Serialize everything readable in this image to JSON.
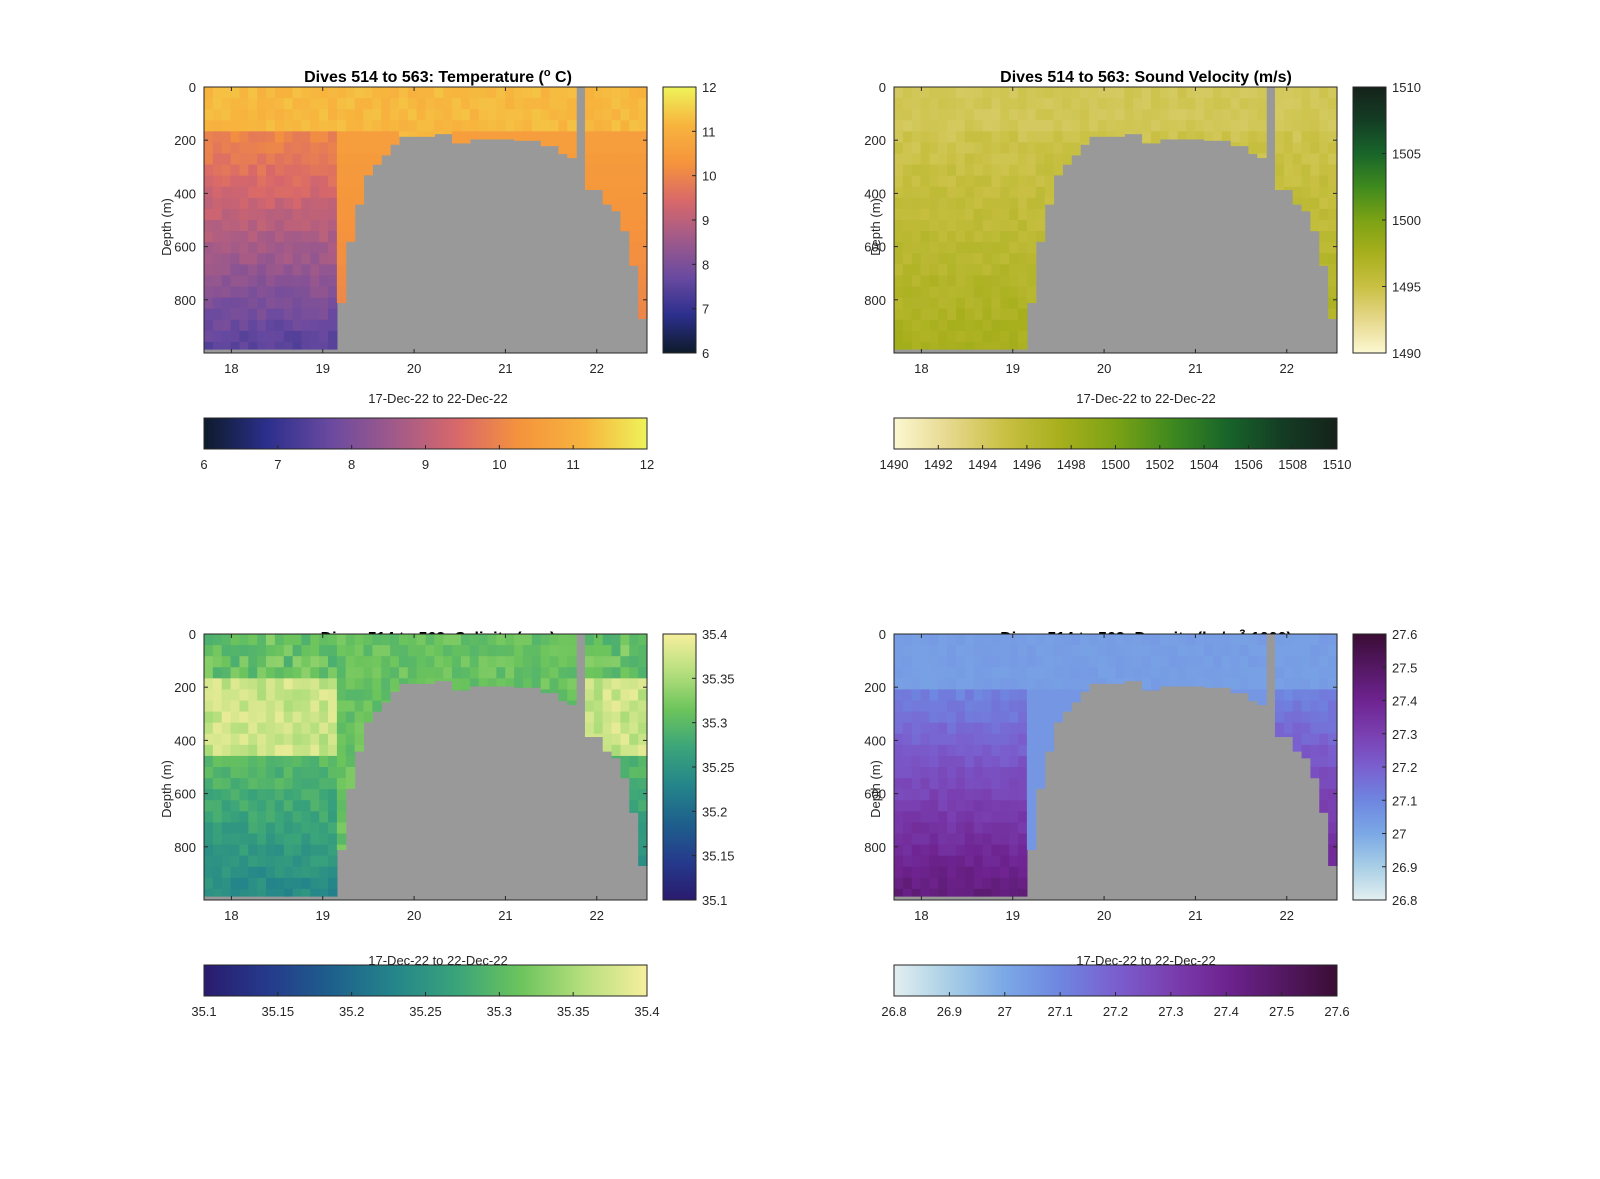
{
  "chart_data": [
    {
      "type": "heatmap",
      "title": "Dives 514 to 563: Temperature (",
      "title_sup": "o",
      "title_tail": " C)",
      "xlabel": "17-Dec-22 to 22-Dec-22",
      "ylabel": "Depth (m)",
      "xlim": [
        17.7,
        22.55
      ],
      "ylim": [
        0,
        1000
      ],
      "y_reversed": true,
      "xticks": [
        18,
        19,
        20,
        21,
        22
      ],
      "yticks": [
        0,
        200,
        400,
        600,
        800
      ],
      "colorbar_ticks": [
        "6",
        "7",
        "8",
        "9",
        "10",
        "11",
        "12"
      ],
      "colorbar_range": [
        6,
        12
      ],
      "colormap": [
        "#0d1b2a",
        "#2c2f8c",
        "#6a4aa0",
        "#a05a8a",
        "#d8686a",
        "#f5943c",
        "#f7b43e",
        "#eef359"
      ],
      "surface_value": 11.3,
      "deep_value": 7.6,
      "no_data_color": "#999999"
    },
    {
      "type": "heatmap",
      "title": "Dives 514 to 563: Sound Velocity (m/s)",
      "xlabel": "17-Dec-22 to 22-Dec-22",
      "ylabel": "Depth (m)",
      "xlim": [
        17.7,
        22.55
      ],
      "ylim": [
        0,
        1000
      ],
      "y_reversed": true,
      "xticks": [
        18,
        19,
        20,
        21,
        22
      ],
      "yticks": [
        0,
        200,
        400,
        600,
        800
      ],
      "colorbar_ticks": [
        "1490",
        "1495",
        "1500",
        "1505",
        "1510"
      ],
      "colorbar_range": [
        1490,
        1510
      ],
      "horizontal_colorbar_ticks": [
        "1490",
        "1492",
        "1494",
        "1496",
        "1498",
        "1500",
        "1502",
        "1504",
        "1506",
        "1508",
        "1510"
      ],
      "colormap": [
        "#fcf8d2",
        "#e6d88c",
        "#c9c043",
        "#a7af1c",
        "#7ba215",
        "#3f8a1e",
        "#18652a",
        "#143d24",
        "#15221a"
      ],
      "surface_value": 1494.5,
      "deep_value": 1497.5,
      "no_data_color": "#999999"
    },
    {
      "type": "heatmap",
      "title": "Dives 514 to 563: Salinity (psu)",
      "xlabel": "17-Dec-22 to 22-Dec-22",
      "ylabel": "Depth (m)",
      "xlim": [
        17.7,
        22.55
      ],
      "ylim": [
        0,
        1000
      ],
      "y_reversed": true,
      "xticks": [
        18,
        19,
        20,
        21,
        22
      ],
      "yticks": [
        0,
        200,
        400,
        600,
        800
      ],
      "colorbar_ticks": [
        "35.1",
        "35.15",
        "35.2",
        "35.25",
        "35.3",
        "35.35",
        "35.4"
      ],
      "colorbar_range": [
        35.1,
        35.4
      ],
      "colormap": [
        "#2a1b6e",
        "#253a8c",
        "#1e5f8c",
        "#24858a",
        "#3aa47a",
        "#6cc45c",
        "#b6df7e",
        "#f6ef9c"
      ],
      "surface_value": 35.32,
      "deep_value": 35.27,
      "no_data_color": "#999999"
    },
    {
      "type": "heatmap",
      "title": "Dives 514 to 563: Density (kg/m",
      "title_sup": "3",
      "title_tail": "-1000)",
      "xlabel": "17-Dec-22 to 22-Dec-22",
      "ylabel": "Depth (m)",
      "xlim": [
        17.7,
        22.55
      ],
      "ylim": [
        0,
        1000
      ],
      "y_reversed": true,
      "xticks": [
        18,
        19,
        20,
        21,
        22
      ],
      "yticks": [
        0,
        200,
        400,
        600,
        800
      ],
      "colorbar_ticks": [
        "26.8",
        "26.9",
        "27",
        "27.1",
        "27.2",
        "27.3",
        "27.4",
        "27.5",
        "27.6"
      ],
      "colorbar_range": [
        26.8,
        27.6
      ],
      "colormap": [
        "#e3eff0",
        "#a8cee6",
        "#7ba8e6",
        "#6e86e0",
        "#7a5fcf",
        "#7a3fb0",
        "#6e2390",
        "#541863",
        "#3a0d35"
      ],
      "surface_value": 27.03,
      "deep_value": 27.35,
      "no_data_color": "#999999"
    }
  ]
}
